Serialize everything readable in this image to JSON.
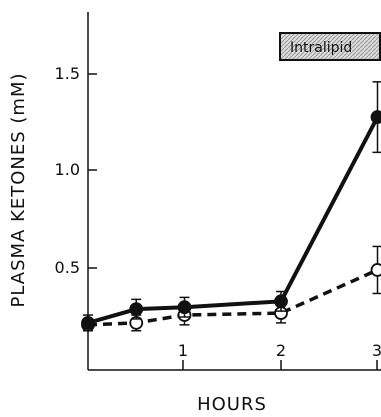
{
  "chart_data": {
    "type": "line",
    "title": "",
    "xlabel": "HOURS",
    "ylabel": "PLASMA KETONES (mM)",
    "x_ticks": [
      "1",
      "2",
      "3"
    ],
    "y_ticks": [
      "0.5",
      "1.0",
      "1.5"
    ],
    "xlim": [
      0,
      3
    ],
    "ylim": [
      0,
      1.8
    ],
    "grid": false,
    "legend_text": "Intralipid",
    "series": [
      {
        "style": "filled-solid",
        "x": [
          0,
          0.5,
          1,
          2,
          3
        ],
        "y": [
          0.22,
          0.29,
          0.3,
          0.33,
          1.27
        ],
        "err": [
          0.04,
          0.05,
          0.05,
          0.05,
          0.18
        ]
      },
      {
        "style": "open-dashed",
        "x": [
          0,
          0.5,
          1,
          2,
          3
        ],
        "y": [
          0.21,
          0.22,
          0.26,
          0.27,
          0.49
        ],
        "err": [
          0.03,
          0.04,
          0.05,
          0.05,
          0.12
        ]
      }
    ]
  }
}
